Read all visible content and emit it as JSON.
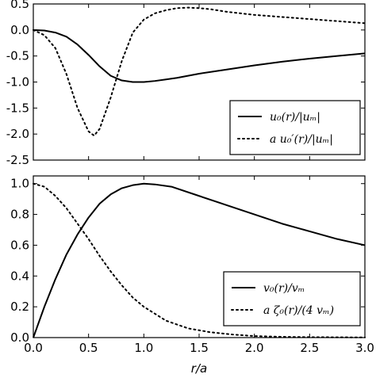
{
  "chart_data": [
    {
      "type": "line",
      "xlim": [
        0.0,
        3.0
      ],
      "ylim": [
        -2.5,
        0.5
      ],
      "xticks": [
        0.0,
        0.5,
        1.0,
        1.5,
        2.0,
        2.5,
        3.0
      ],
      "yticks": [
        "0.5",
        "0.0",
        "-0.5",
        "-1.0",
        "-1.5",
        "-2.0",
        "-2.5"
      ],
      "show_x_tick_labels": false,
      "xlabel": "",
      "ylabel": "",
      "grid": false,
      "legend_position": "lower-right",
      "series": [
        {
          "name": "u₀(r)/|uₘ|",
          "style": "solid",
          "color": "#000000",
          "x": [
            0.0,
            0.1,
            0.2,
            0.3,
            0.4,
            0.5,
            0.6,
            0.7,
            0.8,
            0.9,
            1.0,
            1.1,
            1.2,
            1.3,
            1.5,
            1.75,
            2.0,
            2.25,
            2.5,
            2.75,
            3.0
          ],
          "y": [
            0.0,
            -0.01,
            -0.05,
            -0.13,
            -0.28,
            -0.48,
            -0.7,
            -0.88,
            -0.97,
            -1.0,
            -1.0,
            -0.98,
            -0.95,
            -0.92,
            -0.84,
            -0.76,
            -0.68,
            -0.61,
            -0.55,
            -0.5,
            -0.45
          ]
        },
        {
          "name": "a u₀′(r)/|uₘ|",
          "style": "dotted",
          "color": "#000000",
          "x": [
            0.0,
            0.1,
            0.2,
            0.3,
            0.4,
            0.5,
            0.55,
            0.6,
            0.7,
            0.8,
            0.9,
            1.0,
            1.1,
            1.2,
            1.3,
            1.4,
            1.5,
            1.6,
            1.75,
            2.0,
            2.25,
            2.5,
            2.75,
            3.0
          ],
          "y": [
            0.0,
            -0.1,
            -0.35,
            -0.85,
            -1.5,
            -1.95,
            -2.03,
            -1.9,
            -1.3,
            -0.6,
            -0.05,
            0.2,
            0.32,
            0.38,
            0.42,
            0.43,
            0.42,
            0.4,
            0.35,
            0.29,
            0.25,
            0.21,
            0.17,
            0.13
          ]
        }
      ]
    },
    {
      "type": "line",
      "xlim": [
        0.0,
        3.0
      ],
      "ylim": [
        0.0,
        1.05
      ],
      "xticks": [
        "0.0",
        "0.5",
        "1.0",
        "1.5",
        "2.0",
        "2.5",
        "3.0"
      ],
      "yticks": [
        "1.0",
        "0.8",
        "0.6",
        "0.4",
        "0.2",
        "0.0"
      ],
      "show_x_tick_labels": true,
      "xlabel": "r/a",
      "ylabel": "",
      "grid": false,
      "legend_position": "lower-right",
      "series": [
        {
          "name": "v₀(r)/vₘ",
          "style": "solid",
          "color": "#000000",
          "x": [
            0.0,
            0.1,
            0.2,
            0.3,
            0.4,
            0.5,
            0.6,
            0.7,
            0.8,
            0.9,
            1.0,
            1.1,
            1.25,
            1.5,
            1.75,
            2.0,
            2.25,
            2.5,
            2.75,
            3.0
          ],
          "y": [
            0.0,
            0.2,
            0.38,
            0.54,
            0.67,
            0.78,
            0.87,
            0.93,
            0.97,
            0.99,
            1.0,
            0.995,
            0.98,
            0.92,
            0.86,
            0.8,
            0.74,
            0.69,
            0.64,
            0.6
          ]
        },
        {
          "name": "a ζ₀(r)/(4 vₘ)",
          "style": "dotted",
          "color": "#000000",
          "x": [
            0.0,
            0.1,
            0.2,
            0.3,
            0.4,
            0.5,
            0.6,
            0.7,
            0.8,
            0.9,
            1.0,
            1.2,
            1.4,
            1.6,
            1.8,
            2.0,
            2.25,
            2.5,
            2.75,
            3.0
          ],
          "y": [
            1.0,
            0.98,
            0.92,
            0.84,
            0.74,
            0.64,
            0.53,
            0.43,
            0.34,
            0.26,
            0.2,
            0.11,
            0.06,
            0.035,
            0.02,
            0.01,
            0.005,
            0.003,
            0.002,
            0.001
          ]
        }
      ]
    }
  ]
}
